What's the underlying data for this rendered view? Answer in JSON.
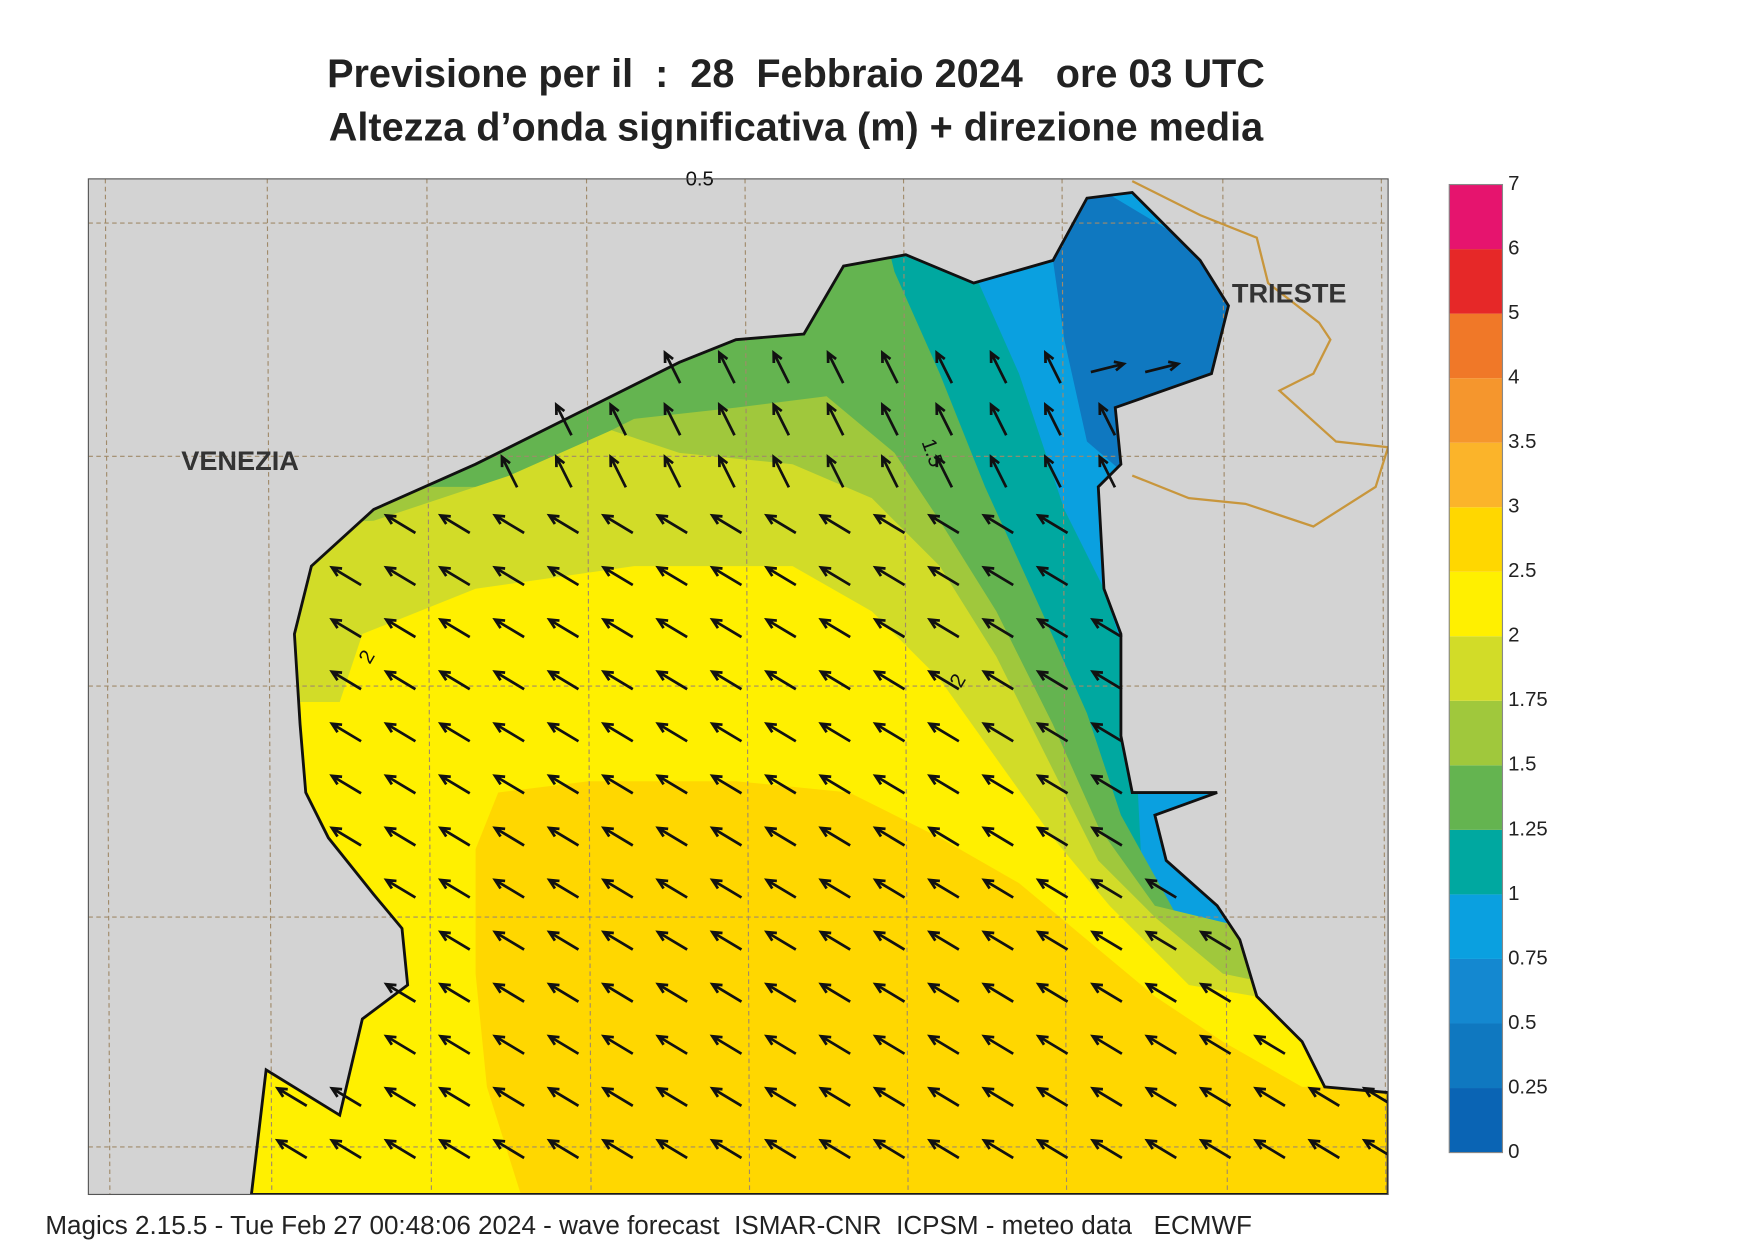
{
  "header": {
    "title": "Previsione per il  :  28  Febbraio 2024   ore 03 UTC",
    "subtitle": "Altezza d’onda significativa (m) + direzione media"
  },
  "map": {
    "places": [
      "VENEZIA",
      "TRIESTE"
    ],
    "contour_labels": [
      0.5,
      1.5,
      2,
      2
    ]
  },
  "colorbar": {
    "levels": [
      0,
      0.25,
      0.5,
      0.75,
      1,
      1.25,
      1.5,
      1.75,
      2,
      2.5,
      3,
      3.5,
      4,
      5,
      6,
      7
    ],
    "colors": [
      "#0a64b4",
      "#0f78c0",
      "#1488d0",
      "#0aa0e0",
      "#00a8a0",
      "#64b450",
      "#a0c83c",
      "#d2dc28",
      "#fff000",
      "#ffd700",
      "#fbb42a",
      "#f5962d",
      "#f07828",
      "#e62828",
      "#e6146e"
    ]
  },
  "footer": "Magics 2.15.5 - Tue Feb 27 00:48:06 2024 - wave forecast  ISMAR-CNR  ICPSM - meteo data   ECMWF"
}
